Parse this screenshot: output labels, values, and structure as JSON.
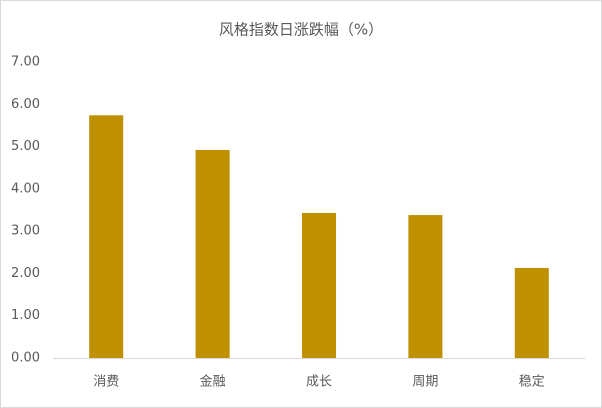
{
  "chart_data": {
    "type": "bar",
    "title": "风格指数日涨跌幅（%）",
    "categories": [
      "消费",
      "金融",
      "成长",
      "周期",
      "稳定"
    ],
    "values": [
      5.74,
      4.92,
      3.43,
      3.38,
      2.13
    ],
    "color": "#bf9000",
    "ylim": [
      0,
      7
    ],
    "yticks": [
      {
        "value": 0,
        "label": "0.00"
      },
      {
        "value": 1,
        "label": "1.00"
      },
      {
        "value": 2,
        "label": "2.00"
      },
      {
        "value": 3,
        "label": "3.00"
      },
      {
        "value": 4,
        "label": "4.00"
      },
      {
        "value": 5,
        "label": "5.00"
      },
      {
        "value": 6,
        "label": "6.00"
      },
      {
        "value": 7,
        "label": "7.00"
      }
    ],
    "grid": false
  }
}
